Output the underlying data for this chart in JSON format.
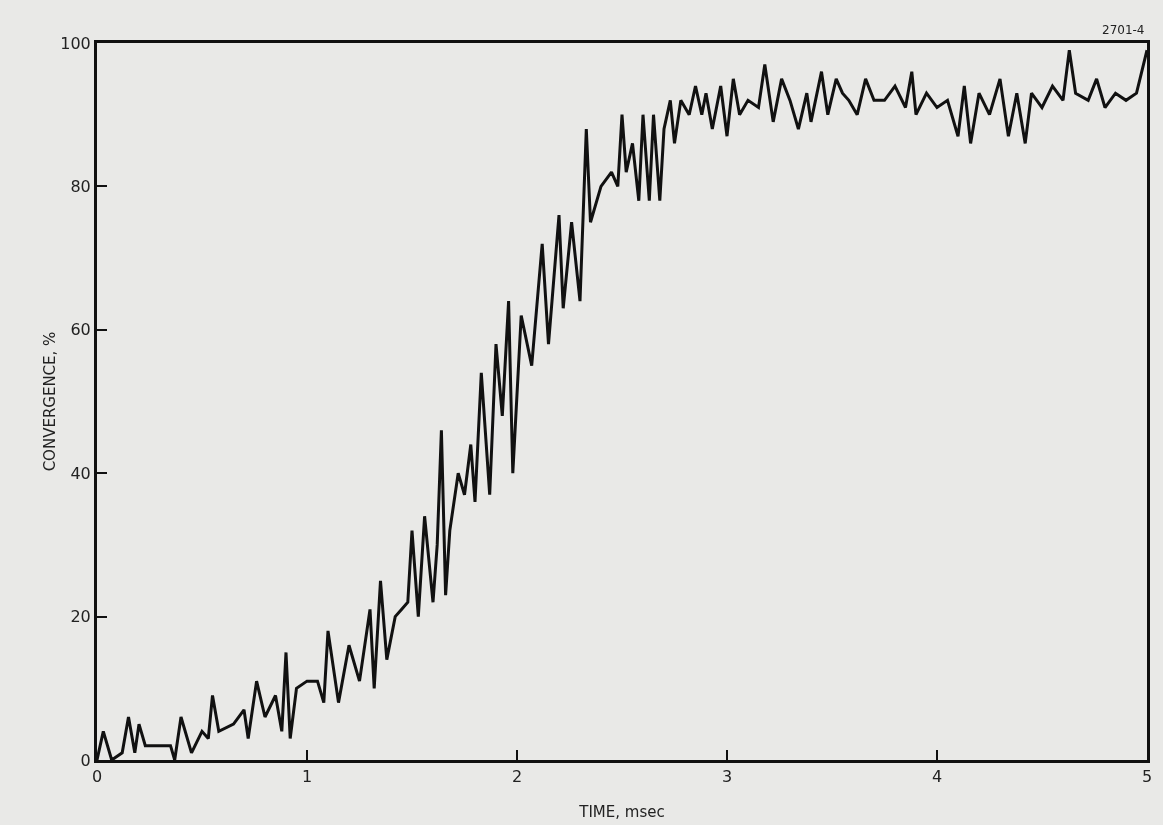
{
  "chart_data": {
    "type": "line",
    "xlabel": "TIME, msec",
    "ylabel": "CONVERGENCE, %",
    "annotations": [
      "2701-4"
    ],
    "xlim": [
      0,
      5
    ],
    "xticks": [
      0,
      1,
      2,
      3,
      4,
      5
    ],
    "ylim": [
      0,
      100
    ],
    "yticks": [
      0,
      20,
      40,
      60,
      80,
      100
    ],
    "grid": false,
    "marker": "none",
    "line_style": "solid",
    "x": [
      0,
      0.03,
      0.07,
      0.12,
      0.15,
      0.18,
      0.2,
      0.23,
      0.3,
      0.35,
      0.37,
      0.4,
      0.45,
      0.5,
      0.53,
      0.55,
      0.58,
      0.65,
      0.7,
      0.72,
      0.76,
      0.8,
      0.85,
      0.88,
      0.9,
      0.92,
      0.95,
      1.0,
      1.05,
      1.08,
      1.1,
      1.15,
      1.2,
      1.25,
      1.3,
      1.32,
      1.35,
      1.38,
      1.42,
      1.45,
      1.48,
      1.5,
      1.53,
      1.56,
      1.6,
      1.62,
      1.64,
      1.66,
      1.68,
      1.72,
      1.75,
      1.78,
      1.8,
      1.83,
      1.87,
      1.9,
      1.93,
      1.96,
      1.98,
      2.02,
      2.07,
      2.12,
      2.15,
      2.2,
      2.22,
      2.26,
      2.3,
      2.33,
      2.35,
      2.4,
      2.45,
      2.48,
      2.5,
      2.52,
      2.55,
      2.58,
      2.6,
      2.63,
      2.65,
      2.68,
      2.7,
      2.73,
      2.75,
      2.78,
      2.82,
      2.85,
      2.88,
      2.9,
      2.93,
      2.97,
      3.0,
      3.03,
      3.06,
      3.1,
      3.15,
      3.18,
      3.22,
      3.26,
      3.3,
      3.34,
      3.38,
      3.4,
      3.45,
      3.48,
      3.52,
      3.55,
      3.58,
      3.62,
      3.66,
      3.7,
      3.75,
      3.8,
      3.85,
      3.88,
      3.9,
      3.95,
      4.0,
      4.05,
      4.1,
      4.13,
      4.16,
      4.2,
      4.25,
      4.3,
      4.34,
      4.38,
      4.42,
      4.45,
      4.5,
      4.55,
      4.6,
      4.63,
      4.66,
      4.72,
      4.76,
      4.8,
      4.85,
      4.9,
      4.95,
      5.0
    ],
    "series": [
      {
        "color": "#111111",
        "values": [
          0,
          4,
          0,
          1,
          6,
          1,
          5,
          2,
          2,
          2,
          0,
          6,
          1,
          4,
          3,
          9,
          4,
          5,
          7,
          3,
          11,
          6,
          9,
          4,
          15,
          3,
          10,
          11,
          11,
          8,
          18,
          8,
          16,
          11,
          21,
          10,
          25,
          14,
          20,
          21,
          22,
          32,
          20,
          34,
          22,
          30,
          46,
          23,
          32,
          40,
          37,
          44,
          36,
          54,
          37,
          58,
          48,
          64,
          40,
          62,
          55,
          72,
          58,
          76,
          63,
          75,
          64,
          88,
          75,
          80,
          82,
          80,
          90,
          82,
          86,
          78,
          90,
          78,
          90,
          78,
          88,
          92,
          86,
          92,
          90,
          94,
          90,
          93,
          88,
          94,
          87,
          95,
          90,
          92,
          91,
          97,
          89,
          95,
          92,
          88,
          93,
          89,
          96,
          90,
          95,
          93,
          92,
          90,
          95,
          92,
          92,
          94,
          91,
          96,
          90,
          93,
          91,
          92,
          87,
          94,
          86,
          93,
          90,
          95,
          87,
          93,
          86,
          93,
          91,
          94,
          92,
          99,
          93,
          92,
          95,
          91,
          93,
          92,
          93,
          99
        ]
      }
    ]
  }
}
